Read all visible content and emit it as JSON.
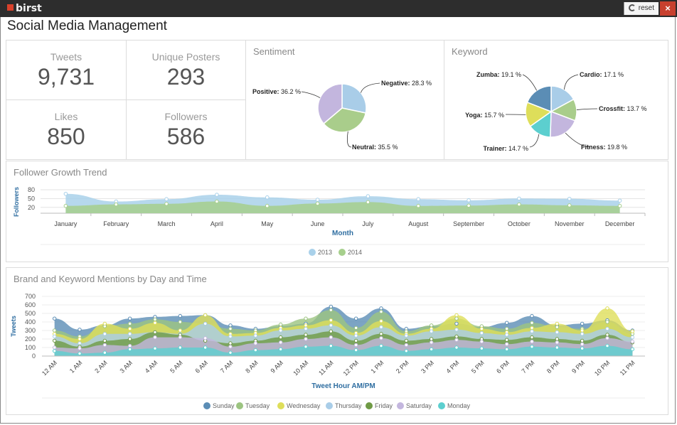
{
  "app": {
    "logo": "birst",
    "reset_label": "reset",
    "close_label": "×"
  },
  "dashboard": {
    "title": "Social Media Management"
  },
  "kpis": [
    {
      "label": "Tweets",
      "value": "9,731"
    },
    {
      "label": "Unique Posters",
      "value": "293"
    },
    {
      "label": "Likes",
      "value": "850"
    },
    {
      "label": "Followers",
      "value": "586"
    }
  ],
  "colors": {
    "sunday": "#5b8db5",
    "tuesday": "#9cc481",
    "wednesday": "#dede5a",
    "thursday": "#a9cde8",
    "friday": "#6f9a45",
    "saturday": "#c3b6de",
    "monday": "#5ccfcf",
    "followers2013": "#a9d1ea",
    "followers2014": "#a6cf8c",
    "axis": "#2f6ea1"
  },
  "chart_data": [
    {
      "id": "sentiment",
      "type": "pie",
      "title": "Sentiment",
      "slices": [
        {
          "label": "Negative",
          "value": 28.3,
          "display": "28.3 %",
          "color": "#a9cde8"
        },
        {
          "label": "Neutral",
          "value": 35.5,
          "display": "35.5 %",
          "color": "#a9cd8b"
        },
        {
          "label": "Positive",
          "value": 36.2,
          "display": "36.2 %",
          "color": "#c3b6de"
        }
      ]
    },
    {
      "id": "keyword",
      "type": "pie",
      "title": "Keyword",
      "slices": [
        {
          "label": "Cardio",
          "value": 17.1,
          "display": "17.1 %",
          "color": "#a9cde8"
        },
        {
          "label": "Crossfit",
          "value": 13.7,
          "display": "13.7 %",
          "color": "#a9cd8b"
        },
        {
          "label": "Fitness",
          "value": 19.8,
          "display": "19.8 %",
          "color": "#c3b6de"
        },
        {
          "label": "Trainer",
          "value": 14.7,
          "display": "14.7 %",
          "color": "#5ccfcf"
        },
        {
          "label": "Yoga",
          "value": 15.7,
          "display": "15.7 %",
          "color": "#dede5a"
        },
        {
          "label": "Zumba",
          "value": 19.1,
          "display": "19.1 %",
          "color": "#5b8db5"
        }
      ]
    },
    {
      "id": "follower-growth",
      "type": "area",
      "title": "Follower Growth Trend",
      "xlabel": "Month",
      "ylabel": "Followers",
      "ylim": [
        0,
        80
      ],
      "yticks": [
        20,
        50,
        80
      ],
      "categories": [
        "January",
        "February",
        "March",
        "April",
        "May",
        "June",
        "July",
        "August",
        "September",
        "October",
        "November",
        "December"
      ],
      "series": [
        {
          "name": "2013",
          "values": [
            66,
            40,
            48,
            63,
            54,
            46,
            58,
            48,
            44,
            50,
            49,
            43
          ],
          "color": "#a9d1ea"
        },
        {
          "name": "2014",
          "values": [
            25,
            30,
            32,
            40,
            25,
            33,
            38,
            25,
            26,
            30,
            27,
            25
          ],
          "color": "#a6cf8c"
        }
      ]
    },
    {
      "id": "mentions",
      "type": "area",
      "title": "Brand and Keyword Mentions by Day and Time",
      "xlabel": "Tweet Hour AM/PM",
      "ylabel": "Tweets",
      "ylim": [
        0,
        700
      ],
      "yticks": [
        0,
        100,
        200,
        300,
        400,
        500,
        600,
        700
      ],
      "categories": [
        "12 AM",
        "1 AM",
        "2 AM",
        "3 AM",
        "4 AM",
        "5 AM",
        "6 AM",
        "7 AM",
        "8 AM",
        "9 AM",
        "10 AM",
        "11 AM",
        "12 PM",
        "1 PM",
        "2 PM",
        "3 PM",
        "4 PM",
        "5 PM",
        "6 PM",
        "7 PM",
        "8 PM",
        "9 PM",
        "10 PM",
        "11 PM"
      ],
      "series": [
        {
          "name": "Sunday",
          "color": "#5b8db5",
          "values": [
            440,
            310,
            360,
            440,
            460,
            470,
            480,
            360,
            320,
            350,
            380,
            580,
            440,
            560,
            320,
            350,
            380,
            340,
            390,
            470,
            360,
            380,
            420,
            300
          ]
        },
        {
          "name": "Tuesday",
          "color": "#9cc481",
          "values": [
            300,
            230,
            350,
            380,
            430,
            400,
            380,
            320,
            300,
            370,
            440,
            540,
            330,
            520,
            290,
            360,
            440,
            350,
            320,
            390,
            340,
            320,
            400,
            260
          ]
        },
        {
          "name": "Wednesday",
          "color": "#dede5a",
          "values": [
            260,
            200,
            380,
            320,
            390,
            300,
            480,
            260,
            270,
            330,
            360,
            420,
            270,
            410,
            260,
            320,
            480,
            320,
            280,
            330,
            380,
            300,
            560,
            290
          ]
        },
        {
          "name": "Thursday",
          "color": "#a9cde8",
          "values": [
            230,
            150,
            260,
            260,
            280,
            260,
            380,
            230,
            240,
            300,
            320,
            360,
            240,
            340,
            240,
            290,
            310,
            270,
            250,
            290,
            280,
            260,
            320,
            220
          ]
        },
        {
          "name": "Friday",
          "color": "#6f9a45",
          "values": [
            180,
            110,
            180,
            200,
            280,
            250,
            180,
            150,
            180,
            220,
            250,
            290,
            180,
            260,
            180,
            200,
            230,
            200,
            190,
            220,
            200,
            180,
            250,
            160
          ]
        },
        {
          "name": "Saturday",
          "color": "#c3b6de",
          "values": [
            100,
            90,
            130,
            120,
            220,
            220,
            210,
            110,
            150,
            160,
            200,
            220,
            130,
            210,
            130,
            160,
            190,
            170,
            140,
            170,
            160,
            140,
            210,
            170
          ]
        },
        {
          "name": "Monday",
          "color": "#5ccfcf",
          "values": [
            60,
            30,
            40,
            80,
            90,
            100,
            100,
            40,
            70,
            80,
            110,
            120,
            70,
            120,
            60,
            80,
            100,
            90,
            80,
            110,
            100,
            90,
            120,
            80
          ]
        }
      ]
    }
  ]
}
